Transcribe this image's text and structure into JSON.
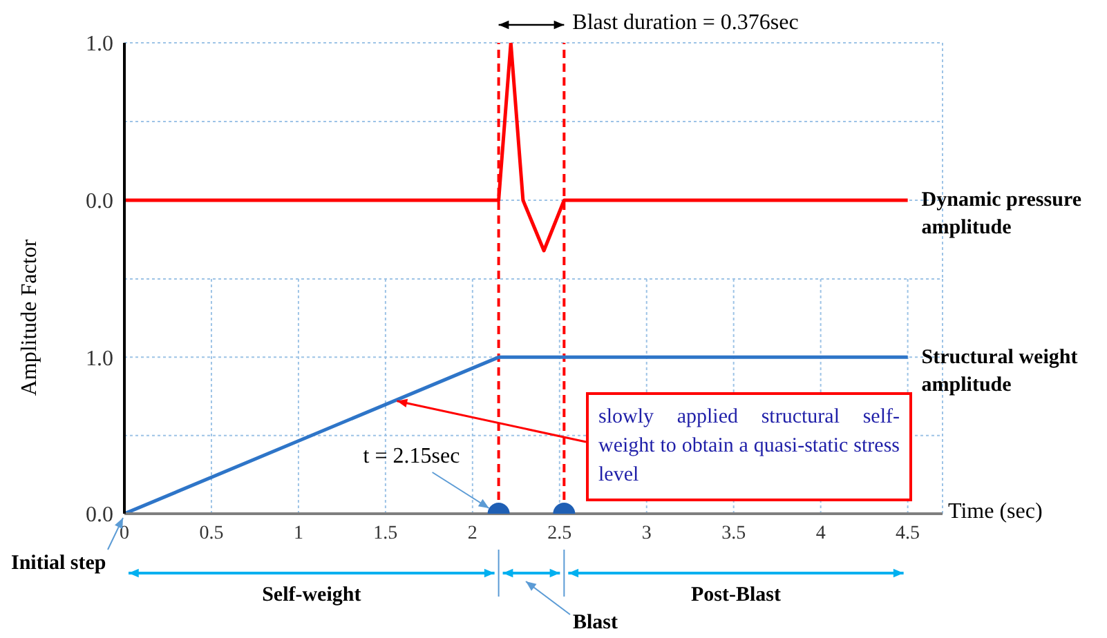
{
  "chart_data": [
    {
      "type": "line",
      "xlim": [
        0,
        4.7
      ],
      "xticks": [
        0,
        0.5,
        1,
        1.5,
        2,
        2.5,
        3,
        3.5,
        4,
        4.5
      ],
      "ylim": [
        -0.5,
        1
      ],
      "yticks": [
        {
          "value": 0,
          "label": "0.0"
        },
        {
          "value": 0.5,
          "label": null
        },
        {
          "value": 1,
          "label": "1.0"
        }
      ],
      "tick_labels": "y",
      "grid": true,
      "marker": "none",
      "line_style": "solid",
      "series": [
        {
          "name": "Dynamic pressure amplitude",
          "color": "#ff0000",
          "x": [
            0,
            2.15,
            2.22,
            2.29,
            2.41,
            2.526,
            4.5
          ],
          "values": [
            0,
            0,
            1,
            0,
            -0.32,
            0,
            0
          ]
        }
      ],
      "ref_lines": [
        {
          "axis": "x",
          "value": 2.15,
          "color": "#ff0000",
          "line_style": "dashed"
        },
        {
          "axis": "x",
          "value": 2.526,
          "color": "#ff0000",
          "line_style": "dashed"
        }
      ],
      "annotations": [
        "Blast duration = 0.376sec"
      ]
    },
    {
      "type": "line",
      "xlabel": "Time (sec)",
      "ylabel": "Amplitude Factor",
      "xlim": [
        0,
        4.7
      ],
      "xticks": [
        0,
        0.5,
        1,
        1.5,
        2,
        2.5,
        3,
        3.5,
        4,
        4.5
      ],
      "ylim": [
        0,
        1.5
      ],
      "yticks": [
        {
          "value": 0,
          "label": "0.0"
        },
        {
          "value": 0.5,
          "label": null
        },
        {
          "value": 1,
          "label": "1.0"
        }
      ],
      "grid": true,
      "marker": "none",
      "line_style": "solid",
      "series": [
        {
          "name": "Structural weight amplitude",
          "color": "#2e75c8",
          "x": [
            0,
            2.15,
            4.5
          ],
          "values": [
            0,
            1,
            1
          ]
        },
        {
          "type": "scatter",
          "marker": "circle",
          "color": "#1f5fb4",
          "x": [
            2.15,
            2.526
          ],
          "values": [
            0,
            0
          ]
        }
      ],
      "ref_lines": [
        {
          "axis": "x",
          "value": 2.15,
          "color": "#ff0000",
          "line_style": "dashed"
        },
        {
          "axis": "x",
          "value": 2.526,
          "color": "#ff0000",
          "line_style": "dashed"
        }
      ],
      "annotations": [
        {
          "text": "t = 2.15sec",
          "x": 2.15,
          "y": 0
        },
        {
          "text": "slowly applied structural self-weight to obtain a quasi-static stress level",
          "x": 1.55,
          "y": 0.72
        },
        {
          "text": "Initial step",
          "x": 0,
          "y": 0
        },
        "Self-weight",
        "Blast",
        "Post-Blast"
      ]
    }
  ]
}
